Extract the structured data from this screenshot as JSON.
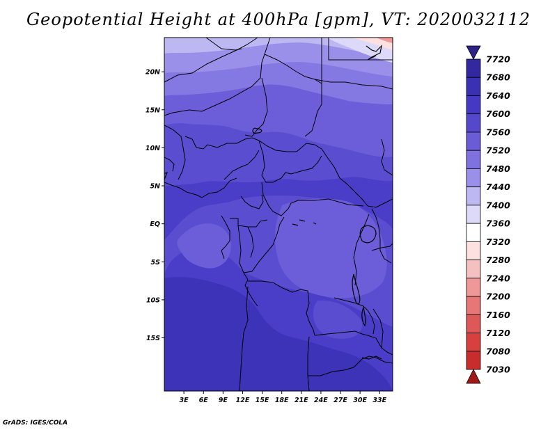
{
  "title": "Geopotential Height at 400hPa [gpm], VT: 2020032112",
  "credit": "GrADS: IGES/COLA",
  "map": {
    "lon_range": [
      0,
      35
    ],
    "lat_range": [
      -22,
      24.5
    ],
    "lat_ticks": [
      {
        "value": 20,
        "label": "20N"
      },
      {
        "value": 15,
        "label": "15N"
      },
      {
        "value": 10,
        "label": "10N"
      },
      {
        "value": 5,
        "label": "5N"
      },
      {
        "value": 0,
        "label": "EQ"
      },
      {
        "value": -5,
        "label": "5S"
      },
      {
        "value": -10,
        "label": "10S"
      },
      {
        "value": -15,
        "label": "15S"
      }
    ],
    "lon_ticks": [
      {
        "value": 3,
        "label": "3E"
      },
      {
        "value": 6,
        "label": "6E"
      },
      {
        "value": 9,
        "label": "9E"
      },
      {
        "value": 12,
        "label": "12E"
      },
      {
        "value": 15,
        "label": "15E"
      },
      {
        "value": 18,
        "label": "18E"
      },
      {
        "value": 21,
        "label": "21E"
      },
      {
        "value": 24,
        "label": "24E"
      },
      {
        "value": 27,
        "label": "27E"
      },
      {
        "value": 30,
        "label": "30E"
      },
      {
        "value": 33,
        "label": "33E"
      }
    ]
  },
  "colorbar": {
    "levels": [
      {
        "label": "7720",
        "color": "#3328a0"
      },
      {
        "label": "7680",
        "color": "#3a30b4"
      },
      {
        "label": "7640",
        "color": "#4438c4"
      },
      {
        "label": "7600",
        "color": "#5548cc"
      },
      {
        "label": "7560",
        "color": "#6a5cd6"
      },
      {
        "label": "7520",
        "color": "#7e72e0"
      },
      {
        "label": "7480",
        "color": "#9a90ea"
      },
      {
        "label": "7440",
        "color": "#bdb7f2"
      },
      {
        "label": "7400",
        "color": "#ddd9f8"
      },
      {
        "label": "7360",
        "color": "#ffffff"
      },
      {
        "label": "7320",
        "color": "#fde0e0"
      },
      {
        "label": "7280",
        "color": "#f7c0c0"
      },
      {
        "label": "7240",
        "color": "#f09898"
      },
      {
        "label": "7200",
        "color": "#e77676"
      },
      {
        "label": "7160",
        "color": "#df5858"
      },
      {
        "label": "7120",
        "color": "#d84040"
      },
      {
        "label": "7080",
        "color": "#c82c2c"
      },
      {
        "label": "7030",
        "color": "#b01e1e"
      }
    ],
    "top_arrow_color": "#2e2488",
    "bottom_arrow_color": "#a01818"
  },
  "field_colors": {
    "h7440": "#bdb7f2",
    "h7480": "#9a90ea",
    "h7520": "#8478e2",
    "h7560": "#6c5ed8",
    "h7600": "#5a4dd0",
    "h7640": "#4a3ec8",
    "h7680": "#3d33b8",
    "h7400": "#ddd9f8",
    "h7320": "#fde0e0",
    "h7240": "#f09898"
  }
}
